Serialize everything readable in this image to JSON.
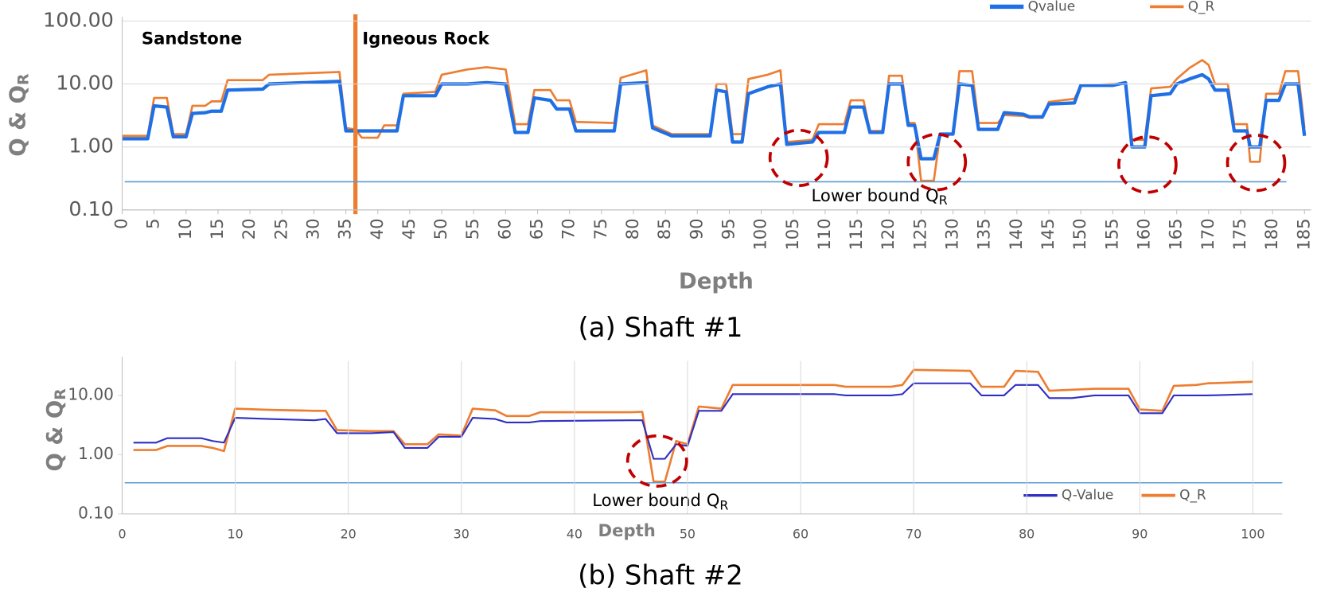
{
  "chart_data": [
    {
      "type": "line",
      "log_y": true,
      "caption": "(a) Shaft #1",
      "xlabel": "Depth",
      "ylabel": "Q & Q",
      "ylabel_sub": "R",
      "xlim": [
        0,
        186
      ],
      "ylim": [
        0.1,
        100
      ],
      "xticks": [
        0,
        5,
        10,
        15,
        20,
        25,
        30,
        35,
        40,
        45,
        50,
        55,
        60,
        65,
        70,
        75,
        80,
        85,
        90,
        95,
        100,
        105,
        110,
        115,
        120,
        125,
        130,
        135,
        140,
        145,
        150,
        155,
        160,
        165,
        170,
        175,
        180,
        185
      ],
      "yticks": [
        {
          "value": 0.1,
          "label": "0.10"
        },
        {
          "value": 1,
          "label": "1.00"
        },
        {
          "value": 10,
          "label": "10.00"
        },
        {
          "value": 100,
          "label": "100.00"
        }
      ],
      "grid": "y",
      "legend": "top-right",
      "annotations": [
        {
          "text": "Sandstone"
        },
        {
          "text": "Igneous Rock"
        },
        {
          "text": "Lower bound Q",
          "sub": "R"
        }
      ],
      "lower_bound": 0.28,
      "lower_bound_color": "#5b9bd5",
      "boundary_x": 36.5,
      "boundary_color": "#ed7d31",
      "x": [
        0,
        4,
        5,
        7,
        8,
        10,
        11,
        13,
        14,
        15.5,
        16.5,
        22,
        23,
        34,
        35,
        36.5,
        37.5,
        40,
        41,
        43,
        44,
        49,
        50,
        54,
        57,
        60,
        61.5,
        63.5,
        64.5,
        67,
        68,
        70,
        71,
        77,
        78,
        82,
        83,
        86,
        92,
        93,
        94.5,
        95.5,
        97,
        98,
        101,
        103,
        104,
        108,
        109,
        113,
        114,
        116,
        117,
        119,
        120,
        122,
        123,
        124,
        125,
        127,
        128,
        130,
        131,
        133,
        134,
        137,
        138,
        141,
        142,
        144,
        145,
        149,
        150,
        155,
        157,
        158,
        160,
        161,
        164,
        165,
        167,
        169,
        170,
        171,
        173,
        174,
        176,
        176.5,
        178,
        179,
        181,
        182,
        184,
        185
      ],
      "series": [
        {
          "name": "Qvalue",
          "color": "#1f6fe5",
          "width": 4,
          "values": [
            1.35,
            1.35,
            4.5,
            4.3,
            1.45,
            1.45,
            3.4,
            3.5,
            3.7,
            3.7,
            8,
            8.3,
            10,
            11,
            1.8,
            1.8,
            1.8,
            1.8,
            1.8,
            1.8,
            6.5,
            6.5,
            10,
            10,
            10.5,
            10,
            1.7,
            1.7,
            6,
            5.5,
            4,
            4,
            1.8,
            1.8,
            10,
            10.5,
            2,
            1.5,
            1.5,
            8,
            7.5,
            1.2,
            1.2,
            7,
            9,
            10,
            1.1,
            1.2,
            1.7,
            1.7,
            4.3,
            4.3,
            1.7,
            1.7,
            10,
            10,
            2.2,
            2.2,
            0.65,
            0.65,
            1.6,
            1.6,
            10,
            9.5,
            1.9,
            1.9,
            3.5,
            3.3,
            3,
            3,
            4.8,
            5,
            9.5,
            9.5,
            10.5,
            1,
            1,
            6.5,
            7,
            10,
            12,
            14,
            12,
            8,
            8,
            1.8,
            1.8,
            1,
            1,
            5.5,
            5.5,
            10,
            10,
            1.5
          ]
        },
        {
          "name": "Q_R",
          "color": "#ed7d31",
          "width": 2.5,
          "values": [
            1.5,
            1.5,
            6,
            6,
            1.6,
            1.6,
            4.5,
            4.5,
            5.3,
            5.3,
            11.5,
            11.5,
            14,
            15.5,
            2,
            1.9,
            1.4,
            1.4,
            2.2,
            2.2,
            7,
            7.5,
            14,
            17,
            18.5,
            17,
            2.3,
            2.3,
            8,
            8,
            5.5,
            5.5,
            2.5,
            2.4,
            12.5,
            16.5,
            2.2,
            1.6,
            1.6,
            10,
            10,
            1.6,
            1.6,
            12,
            14,
            16.5,
            1.2,
            1.3,
            2.3,
            2.3,
            5.5,
            5.5,
            1.8,
            1.8,
            13.5,
            13.5,
            2.4,
            2.4,
            0.29,
            0.29,
            1.6,
            1.6,
            16,
            16,
            2.4,
            2.4,
            3.2,
            3.1,
            2.9,
            2.9,
            5.2,
            5.8,
            9.5,
            10,
            10,
            1.3,
            1.3,
            8.5,
            9,
            12,
            18,
            24,
            20,
            10,
            10,
            2.3,
            2.3,
            0.58,
            0.58,
            7,
            7,
            16,
            16,
            2
          ]
        }
      ]
    },
    {
      "type": "line",
      "log_y": true,
      "caption": "(b) Shaft #2",
      "xlabel": "Depth",
      "ylabel": "Q & Q",
      "ylabel_sub": "R",
      "xlim": [
        0,
        102.6
      ],
      "ylim": [
        0.1,
        38
      ],
      "xticks": [
        0,
        10,
        20,
        30,
        40,
        50,
        60,
        70,
        80,
        90,
        100
      ],
      "yticks": [
        {
          "value": 0.1,
          "label": "0.10"
        },
        {
          "value": 1,
          "label": "1.00"
        },
        {
          "value": 10,
          "label": "10.00"
        }
      ],
      "grid": "x",
      "legend": "bottom-right",
      "annotations": [
        {
          "text": "Lower bound Q",
          "sub": "R"
        }
      ],
      "lower_bound": 0.335,
      "lower_bound_color": "#5b9bd5",
      "x": [
        1,
        3,
        4,
        7,
        8,
        9,
        10,
        13,
        17,
        18,
        19,
        22,
        24,
        25,
        27,
        28,
        30,
        31,
        33,
        34,
        36,
        37,
        45,
        46,
        47,
        48,
        49,
        50,
        51,
        53,
        54,
        63,
        64,
        68,
        69,
        70,
        75,
        76,
        78,
        79,
        81,
        82,
        84,
        86,
        89,
        90,
        92,
        93,
        95,
        96,
        100
      ],
      "series": [
        {
          "name": "Q-Value",
          "color": "#2f2fc4",
          "width": 2,
          "values": [
            1.6,
            1.6,
            1.9,
            1.9,
            1.7,
            1.6,
            4.2,
            4,
            3.8,
            4,
            2.3,
            2.3,
            2.4,
            1.3,
            1.3,
            2,
            2,
            4.2,
            4,
            3.5,
            3.5,
            3.7,
            3.8,
            3.8,
            0.85,
            0.85,
            1.5,
            1.4,
            5.5,
            5.5,
            10.5,
            10.5,
            10,
            10,
            10.5,
            16,
            16,
            10,
            10,
            15,
            15,
            9,
            9,
            10,
            10,
            5,
            5,
            10,
            10,
            10,
            10.5
          ]
        },
        {
          "name": "Q_R",
          "color": "#ed7d31",
          "width": 2.5,
          "values": [
            1.2,
            1.2,
            1.4,
            1.4,
            1.3,
            1.15,
            6,
            5.7,
            5.5,
            5.5,
            2.6,
            2.5,
            2.5,
            1.5,
            1.5,
            2.2,
            2.1,
            6,
            5.6,
            4.5,
            4.5,
            5.2,
            5.2,
            5.3,
            0.35,
            0.35,
            1.7,
            1.5,
            6.5,
            6,
            15,
            15,
            14,
            14,
            15,
            27,
            26,
            14,
            14,
            26,
            25,
            12,
            12.5,
            13,
            13,
            5.8,
            5.5,
            14.5,
            15,
            16,
            17
          ]
        }
      ]
    }
  ]
}
